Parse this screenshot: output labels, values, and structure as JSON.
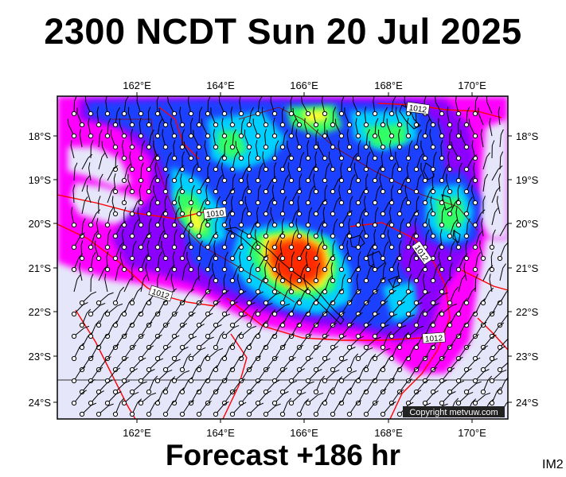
{
  "title": "2300 NCDT Sun 20 Jul 2025",
  "subtitle": "Forecast +186 hr",
  "image_code": "IM2",
  "copyright": "Copyright metvuw.com",
  "axes": {
    "lon_labels": [
      "162°E",
      "164°E",
      "166°E",
      "168°E",
      "170°E"
    ],
    "lat_labels": [
      "18°S",
      "19°S",
      "20°S",
      "21°S",
      "22°S",
      "23°S",
      "24°S"
    ]
  },
  "isobar_labels": [
    "1012",
    "1010",
    "1012",
    "1012",
    "1012"
  ],
  "colors": {
    "background": "#e6e6fa",
    "magenta": "#ff00ff",
    "purple": "#8b00ff",
    "blue": "#1f3fff",
    "cyan": "#00d0ff",
    "green": "#33ff66",
    "yellow": "#ffff33",
    "orange": "#ff7f00",
    "red": "#ff2a00",
    "isobar": "#ff0000",
    "coast": "#000000"
  }
}
